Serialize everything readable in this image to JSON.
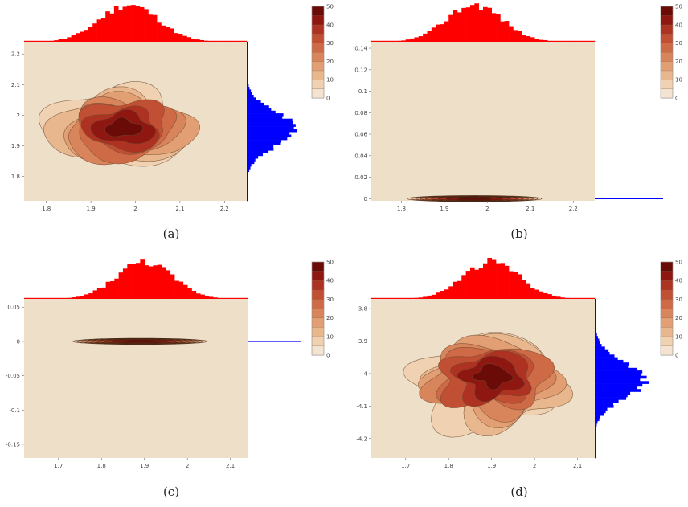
{
  "figure": {
    "colorscale": [
      "#f3e3d0",
      "#f0d2b2",
      "#e9b78e",
      "#e29f74",
      "#d9855c",
      "#cf6a46",
      "#c14f33",
      "#ad3222",
      "#8e1712",
      "#6b0b08"
    ],
    "bg_color": "#eedfc9",
    "top_hist_color": "#ff0000",
    "right_hist_color": "#0000ff"
  },
  "chart_data": [
    {
      "type": "contour",
      "panel": "(a)",
      "caption": "(a)",
      "x_ticks": [
        "1.8",
        "1.9",
        "2",
        "2.1",
        "2.2"
      ],
      "y_ticks": [
        "1.8",
        "1.9",
        "2",
        "2.1",
        "2.2"
      ],
      "xlim": [
        1.75,
        2.25
      ],
      "ylim": [
        1.72,
        2.24
      ],
      "colorbar": {
        "min": 0,
        "max": 50,
        "ticks": [
          "0",
          "10",
          "20",
          "30",
          "40",
          "50"
        ]
      },
      "density": {
        "cx": 1.97,
        "cy": 1.96,
        "sx": 0.07,
        "sy": 0.055,
        "peak": 50
      },
      "top_hist": {
        "x_center": 1.985,
        "x_sigma": 0.065
      },
      "right_hist": {
        "y_center": 1.955,
        "y_sigma": 0.055
      }
    },
    {
      "type": "contour",
      "panel": "(b)",
      "caption": "(b)",
      "x_ticks": [
        "1.8",
        "1.9",
        "2",
        "2.1",
        "2.2"
      ],
      "y_ticks": [
        "0",
        "0.02",
        "0.04",
        "0.06",
        "0.08",
        "0.1",
        "0.12",
        "0.14"
      ],
      "xlim": [
        1.73,
        2.25
      ],
      "ylim": [
        -0.002,
        0.146
      ],
      "colorbar": {
        "min": 0,
        "max": 50,
        "ticks": [
          "0",
          "10",
          "20",
          "30",
          "40",
          "50"
        ]
      },
      "density": {
        "cx": 1.97,
        "cy": 0,
        "sx": 0.07,
        "sy": 0.0006,
        "peak": 50
      },
      "top_hist": {
        "x_center": 1.97,
        "x_sigma": 0.065
      },
      "right_hist": {
        "y_center": 0,
        "y_sigma": 0
      }
    },
    {
      "type": "contour",
      "panel": "(c)",
      "caption": "(c)",
      "x_ticks": [
        "1.7",
        "1.8",
        "1.9",
        "2",
        "2.1"
      ],
      "y_ticks": [
        "0.05",
        "0",
        "-0.05",
        "-0.1",
        "-0.15"
      ],
      "xlim": [
        1.62,
        2.14
      ],
      "ylim": [
        -0.17,
        0.062
      ],
      "colorbar": {
        "min": 0,
        "max": 50,
        "ticks": [
          "0",
          "10",
          "20",
          "30",
          "40",
          "50"
        ]
      },
      "density": {
        "cx": 1.89,
        "cy": 0,
        "sx": 0.07,
        "sy": 0.0008,
        "peak": 50
      },
      "top_hist": {
        "x_center": 1.9,
        "x_sigma": 0.065
      },
      "right_hist": {
        "y_center": 0,
        "y_sigma": 0
      }
    },
    {
      "type": "contour",
      "panel": "(d)",
      "caption": "(d)",
      "x_ticks": [
        "1.7",
        "1.8",
        "1.9",
        "2",
        "2.1"
      ],
      "y_ticks": [
        "-3.8",
        "-3.9",
        "-4",
        "-4.1",
        "-4.2"
      ],
      "xlim": [
        1.62,
        2.14
      ],
      "ylim": [
        -4.26,
        -3.77
      ],
      "colorbar": {
        "min": 0,
        "max": 50,
        "ticks": [
          "0",
          "10",
          "20",
          "30",
          "40",
          "50"
        ]
      },
      "density": {
        "cx": 1.9,
        "cy": -4.01,
        "sx": 0.075,
        "sy": 0.06,
        "peak": 50
      },
      "top_hist": {
        "x_center": 1.9,
        "x_sigma": 0.065
      },
      "right_hist": {
        "y_center": -4.02,
        "y_sigma": 0.055
      }
    }
  ]
}
